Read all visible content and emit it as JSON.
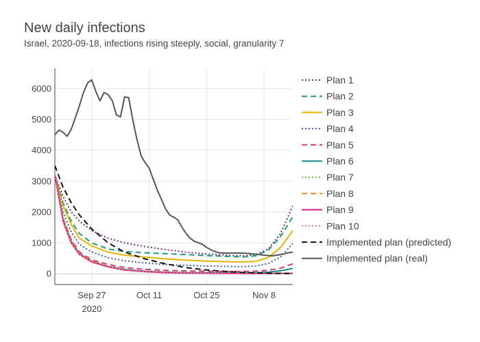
{
  "chart_data": {
    "type": "line",
    "title": "New daily infections",
    "subtitle": "Israel, 2020-09-18, infections rising steeply, social, granularity 7",
    "xlabel": "",
    "ylabel": "",
    "xlim": [
      "2020-09-18",
      "2020-11-15"
    ],
    "ylim": [
      -350,
      6650
    ],
    "x_ticks": [
      {
        "date": "2020-09-27",
        "label": "Sep 27",
        "sublabel": "2020"
      },
      {
        "date": "2020-10-11",
        "label": "Oct 11",
        "sublabel": ""
      },
      {
        "date": "2020-10-25",
        "label": "Oct 25",
        "sublabel": ""
      },
      {
        "date": "2020-11-08",
        "label": "Nov 8",
        "sublabel": ""
      }
    ],
    "y_ticks": [
      0,
      1000,
      2000,
      3000,
      4000,
      5000,
      6000
    ],
    "grid": true,
    "legend_position": "right",
    "series": [
      {
        "name": "Plan 1",
        "color": "#6a2c7a",
        "dash": "2,3",
        "points": [
          [
            "2020-09-18",
            3200
          ],
          [
            "2020-09-20",
            2500
          ],
          [
            "2020-09-22",
            2000
          ],
          [
            "2020-09-24",
            1700
          ],
          [
            "2020-09-27",
            1400
          ],
          [
            "2020-10-01",
            1150
          ],
          [
            "2020-10-05",
            1000
          ],
          [
            "2020-10-10",
            880
          ],
          [
            "2020-10-15",
            780
          ],
          [
            "2020-10-20",
            700
          ],
          [
            "2020-10-25",
            640
          ],
          [
            "2020-10-30",
            600
          ],
          [
            "2020-11-03",
            580
          ],
          [
            "2020-11-06",
            620
          ],
          [
            "2020-11-09",
            800
          ],
          [
            "2020-11-12",
            1300
          ],
          [
            "2020-11-15",
            2200
          ]
        ]
      },
      {
        "name": "Plan 2",
        "color": "#1b9e77",
        "dash": "8,5",
        "points": [
          [
            "2020-09-18",
            3200
          ],
          [
            "2020-09-20",
            2300
          ],
          [
            "2020-09-22",
            1700
          ],
          [
            "2020-09-24",
            1300
          ],
          [
            "2020-09-27",
            1000
          ],
          [
            "2020-10-01",
            800
          ],
          [
            "2020-10-05",
            720
          ],
          [
            "2020-10-10",
            680
          ],
          [
            "2020-10-15",
            650
          ],
          [
            "2020-10-20",
            620
          ],
          [
            "2020-10-25",
            590
          ],
          [
            "2020-10-30",
            560
          ],
          [
            "2020-11-03",
            540
          ],
          [
            "2020-11-06",
            580
          ],
          [
            "2020-11-09",
            760
          ],
          [
            "2020-11-12",
            1200
          ],
          [
            "2020-11-15",
            1850
          ]
        ]
      },
      {
        "name": "Plan 3",
        "color": "#e6b400",
        "dash": "",
        "points": [
          [
            "2020-09-18",
            3200
          ],
          [
            "2020-09-20",
            2200
          ],
          [
            "2020-09-22",
            1600
          ],
          [
            "2020-09-24",
            1150
          ],
          [
            "2020-09-27",
            900
          ],
          [
            "2020-10-01",
            700
          ],
          [
            "2020-10-05",
            600
          ],
          [
            "2020-10-10",
            540
          ],
          [
            "2020-10-15",
            480
          ],
          [
            "2020-10-20",
            440
          ],
          [
            "2020-10-25",
            410
          ],
          [
            "2020-10-30",
            390
          ],
          [
            "2020-11-03",
            380
          ],
          [
            "2020-11-06",
            400
          ],
          [
            "2020-11-09",
            520
          ],
          [
            "2020-11-12",
            850
          ],
          [
            "2020-11-15",
            1400
          ]
        ]
      },
      {
        "name": "Plan 4",
        "color": "#3b5ba5",
        "dash": "2,3",
        "points": [
          [
            "2020-09-18",
            3200
          ],
          [
            "2020-09-20",
            2000
          ],
          [
            "2020-09-22",
            1350
          ],
          [
            "2020-09-24",
            950
          ],
          [
            "2020-09-27",
            700
          ],
          [
            "2020-10-01",
            520
          ],
          [
            "2020-10-05",
            420
          ],
          [
            "2020-10-10",
            350
          ],
          [
            "2020-10-15",
            300
          ],
          [
            "2020-10-20",
            270
          ],
          [
            "2020-10-25",
            250
          ],
          [
            "2020-10-30",
            240
          ],
          [
            "2020-11-03",
            230
          ],
          [
            "2020-11-06",
            250
          ],
          [
            "2020-11-09",
            330
          ],
          [
            "2020-11-12",
            540
          ],
          [
            "2020-11-15",
            980
          ]
        ]
      },
      {
        "name": "Plan 5",
        "color": "#d63a6b",
        "dash": "8,5",
        "points": [
          [
            "2020-09-18",
            3200
          ],
          [
            "2020-09-20",
            1800
          ],
          [
            "2020-09-22",
            1100
          ],
          [
            "2020-09-24",
            700
          ],
          [
            "2020-09-27",
            450
          ],
          [
            "2020-10-01",
            300
          ],
          [
            "2020-10-05",
            200
          ],
          [
            "2020-10-10",
            140
          ],
          [
            "2020-10-15",
            110
          ],
          [
            "2020-10-20",
            90
          ],
          [
            "2020-10-25",
            80
          ],
          [
            "2020-10-30",
            75
          ],
          [
            "2020-11-03",
            75
          ],
          [
            "2020-11-06",
            85
          ],
          [
            "2020-11-09",
            110
          ],
          [
            "2020-11-12",
            180
          ],
          [
            "2020-11-15",
            320
          ]
        ]
      },
      {
        "name": "Plan 6",
        "color": "#138a8a",
        "dash": "",
        "points": [
          [
            "2020-09-18",
            3200
          ],
          [
            "2020-09-20",
            1750
          ],
          [
            "2020-09-22",
            1050
          ],
          [
            "2020-09-24",
            650
          ],
          [
            "2020-09-27",
            400
          ],
          [
            "2020-10-01",
            240
          ],
          [
            "2020-10-05",
            140
          ],
          [
            "2020-10-10",
            80
          ],
          [
            "2020-10-15",
            50
          ],
          [
            "2020-10-20",
            35
          ],
          [
            "2020-10-25",
            30
          ],
          [
            "2020-10-30",
            28
          ],
          [
            "2020-11-03",
            28
          ],
          [
            "2020-11-06",
            35
          ],
          [
            "2020-11-09",
            50
          ],
          [
            "2020-11-12",
            95
          ],
          [
            "2020-11-15",
            170
          ]
        ]
      },
      {
        "name": "Plan 7",
        "color": "#66c03a",
        "dash": "2,3",
        "points": [
          [
            "2020-09-18",
            3200
          ],
          [
            "2020-09-20",
            1750
          ],
          [
            "2020-09-22",
            1050
          ],
          [
            "2020-09-24",
            650
          ],
          [
            "2020-09-27",
            400
          ],
          [
            "2020-10-01",
            230
          ],
          [
            "2020-10-05",
            130
          ],
          [
            "2020-10-10",
            70
          ],
          [
            "2020-10-15",
            40
          ],
          [
            "2020-10-20",
            25
          ],
          [
            "2020-10-25",
            18
          ],
          [
            "2020-10-30",
            15
          ],
          [
            "2020-11-03",
            14
          ],
          [
            "2020-11-06",
            15
          ],
          [
            "2020-11-09",
            18
          ],
          [
            "2020-11-12",
            22
          ],
          [
            "2020-11-15",
            28
          ]
        ]
      },
      {
        "name": "Plan 8",
        "color": "#f28a1e",
        "dash": "8,5",
        "points": [
          [
            "2020-09-18",
            3200
          ],
          [
            "2020-09-20",
            1750
          ],
          [
            "2020-09-22",
            1050
          ],
          [
            "2020-09-24",
            650
          ],
          [
            "2020-09-27",
            400
          ],
          [
            "2020-10-01",
            230
          ],
          [
            "2020-10-05",
            130
          ],
          [
            "2020-10-10",
            70
          ],
          [
            "2020-10-15",
            40
          ],
          [
            "2020-10-20",
            25
          ],
          [
            "2020-10-25",
            18
          ],
          [
            "2020-10-30",
            14
          ],
          [
            "2020-11-03",
            12
          ],
          [
            "2020-11-06",
            12
          ],
          [
            "2020-11-09",
            13
          ],
          [
            "2020-11-12",
            14
          ],
          [
            "2020-11-15",
            15
          ]
        ]
      },
      {
        "name": "Plan 9",
        "color": "#d61f8f",
        "dash": "",
        "points": [
          [
            "2020-09-18",
            3200
          ],
          [
            "2020-09-20",
            1700
          ],
          [
            "2020-09-22",
            1000
          ],
          [
            "2020-09-24",
            620
          ],
          [
            "2020-09-27",
            380
          ],
          [
            "2020-10-01",
            220
          ],
          [
            "2020-10-05",
            120
          ],
          [
            "2020-10-10",
            65
          ],
          [
            "2020-10-15",
            35
          ],
          [
            "2020-10-20",
            22
          ],
          [
            "2020-10-25",
            15
          ],
          [
            "2020-10-30",
            12
          ],
          [
            "2020-11-03",
            10
          ],
          [
            "2020-11-06",
            10
          ],
          [
            "2020-11-09",
            10
          ],
          [
            "2020-11-12",
            10
          ],
          [
            "2020-11-15",
            10
          ]
        ]
      },
      {
        "name": "Plan 10",
        "color": "#e8797e",
        "dash": "2,3",
        "points": [
          [
            "2020-09-18",
            3200
          ],
          [
            "2020-09-20",
            1700
          ],
          [
            "2020-09-22",
            1000
          ],
          [
            "2020-09-24",
            620
          ],
          [
            "2020-09-27",
            380
          ],
          [
            "2020-10-01",
            220
          ],
          [
            "2020-10-05",
            120
          ],
          [
            "2020-10-10",
            65
          ],
          [
            "2020-10-15",
            35
          ],
          [
            "2020-10-20",
            22
          ],
          [
            "2020-10-25",
            15
          ],
          [
            "2020-10-30",
            12
          ],
          [
            "2020-11-03",
            10
          ],
          [
            "2020-11-06",
            10
          ],
          [
            "2020-11-09",
            10
          ],
          [
            "2020-11-12",
            10
          ],
          [
            "2020-11-15",
            10
          ]
        ]
      },
      {
        "name": "Implemented plan (predicted)",
        "color": "#111111",
        "dash": "8,5",
        "points": [
          [
            "2020-09-18",
            3500
          ],
          [
            "2020-09-20",
            2800
          ],
          [
            "2020-09-22",
            2300
          ],
          [
            "2020-09-24",
            1900
          ],
          [
            "2020-09-27",
            1450
          ],
          [
            "2020-10-01",
            1000
          ],
          [
            "2020-10-05",
            700
          ],
          [
            "2020-10-10",
            480
          ],
          [
            "2020-10-15",
            320
          ],
          [
            "2020-10-20",
            200
          ],
          [
            "2020-10-25",
            120
          ],
          [
            "2020-10-30",
            70
          ],
          [
            "2020-11-03",
            40
          ],
          [
            "2020-11-06",
            25
          ],
          [
            "2020-11-09",
            15
          ],
          [
            "2020-11-12",
            8
          ],
          [
            "2020-11-15",
            5
          ]
        ]
      },
      {
        "name": "Implemented plan (real)",
        "color": "#555555",
        "dash": "",
        "points": [
          [
            "2020-09-18",
            4500
          ],
          [
            "2020-09-19",
            4650
          ],
          [
            "2020-09-20",
            4580
          ],
          [
            "2020-09-21",
            4450
          ],
          [
            "2020-09-22",
            4680
          ],
          [
            "2020-09-23",
            5050
          ],
          [
            "2020-09-24",
            5450
          ],
          [
            "2020-09-25",
            5880
          ],
          [
            "2020-09-26",
            6180
          ],
          [
            "2020-09-27",
            6280
          ],
          [
            "2020-09-28",
            5900
          ],
          [
            "2020-09-29",
            5600
          ],
          [
            "2020-09-30",
            5870
          ],
          [
            "2020-10-01",
            5800
          ],
          [
            "2020-10-02",
            5600
          ],
          [
            "2020-10-03",
            5150
          ],
          [
            "2020-10-04",
            5080
          ],
          [
            "2020-10-05",
            5730
          ],
          [
            "2020-10-06",
            5700
          ],
          [
            "2020-10-07",
            4980
          ],
          [
            "2020-10-08",
            4350
          ],
          [
            "2020-10-09",
            3830
          ],
          [
            "2020-10-10",
            3600
          ],
          [
            "2020-10-11",
            3420
          ],
          [
            "2020-10-12",
            3050
          ],
          [
            "2020-10-13",
            2700
          ],
          [
            "2020-10-14",
            2400
          ],
          [
            "2020-10-15",
            2100
          ],
          [
            "2020-10-16",
            1900
          ],
          [
            "2020-10-17",
            1830
          ],
          [
            "2020-10-18",
            1740
          ],
          [
            "2020-10-19",
            1500
          ],
          [
            "2020-10-20",
            1300
          ],
          [
            "2020-10-21",
            1150
          ],
          [
            "2020-10-22",
            1050
          ],
          [
            "2020-10-23",
            1000
          ],
          [
            "2020-10-24",
            950
          ],
          [
            "2020-10-25",
            850
          ],
          [
            "2020-10-26",
            780
          ],
          [
            "2020-10-27",
            720
          ],
          [
            "2020-10-28",
            680
          ],
          [
            "2020-10-29",
            670
          ],
          [
            "2020-10-30",
            670
          ],
          [
            "2020-10-31",
            670
          ],
          [
            "2020-11-02",
            670
          ],
          [
            "2020-11-04",
            660
          ],
          [
            "2020-11-06",
            630
          ],
          [
            "2020-11-08",
            600
          ],
          [
            "2020-11-10",
            580
          ],
          [
            "2020-11-12",
            620
          ],
          [
            "2020-11-14",
            680
          ],
          [
            "2020-11-15",
            700
          ]
        ]
      }
    ]
  }
}
